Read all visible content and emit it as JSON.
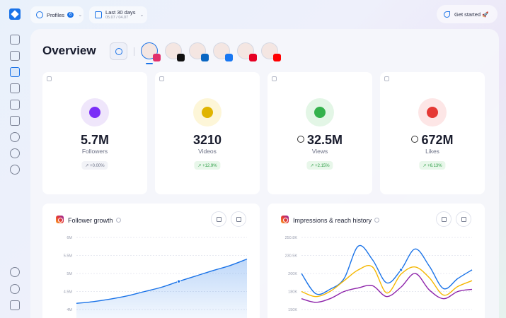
{
  "topbar": {
    "profiles_label": "Profiles",
    "profiles_count": "6",
    "date_range_label": "Last 30 days",
    "date_range_sub": "05.07 / 04.07",
    "get_started_label": "Get started 🚀"
  },
  "sidebar": {
    "items": [
      "home-icon",
      "grid-icon",
      "analytics-icon",
      "clipboard-icon",
      "image-icon",
      "calendar-icon",
      "bulb-icon",
      "chat-icon",
      "globe-icon",
      "bell-icon",
      "user-icon",
      "settings-icon"
    ],
    "active": "analytics-icon"
  },
  "main": {
    "title": "Overview",
    "profiles": [
      {
        "network": "instagram",
        "color": "#e1306c"
      },
      {
        "network": "tiktok",
        "color": "#111111"
      },
      {
        "network": "linkedin",
        "color": "#0a66c2"
      },
      {
        "network": "facebook",
        "color": "#1877f2"
      },
      {
        "network": "pinterest",
        "color": "#e60023"
      },
      {
        "network": "youtube",
        "color": "#ff0000"
      }
    ]
  },
  "stats": [
    {
      "value": "5.7M",
      "label": "Followers",
      "change": "↗ +0.00%",
      "icon": "eye-icon",
      "icon_bg": "#efe6fb",
      "icon_fg": "#7b2ff7",
      "change_bg": "#f2f3f7",
      "change_color": "#6c7186",
      "linked": false
    },
    {
      "value": "3210",
      "label": "Videos",
      "change": "↗ +12.9%",
      "icon": "target-icon",
      "icon_bg": "#fdf6d8",
      "icon_fg": "#e0b400",
      "change_bg": "#e8f7ea",
      "change_color": "#2e9e47",
      "linked": false
    },
    {
      "value": "32.5M",
      "label": "Views",
      "change": "↗ +2.15%",
      "icon": "smile-icon",
      "icon_bg": "#e3f6e6",
      "icon_fg": "#34b24c",
      "change_bg": "#e8f7ea",
      "change_color": "#2e9e47",
      "linked": true
    },
    {
      "value": "672M",
      "label": "Likes",
      "change": "↗ +6.13%",
      "icon": "heart-icon",
      "icon_bg": "#fde6e6",
      "icon_fg": "#e53935",
      "change_bg": "#e8f7ea",
      "change_color": "#2e9e47",
      "linked": true
    }
  ],
  "charts": {
    "follower_title": "Follower growth",
    "impressions_title": "Impressions & reach history"
  },
  "chart_data": [
    {
      "type": "area",
      "title": "Follower growth",
      "x": [
        0,
        1,
        2,
        3,
        4,
        5,
        6,
        7,
        8,
        9,
        10
      ],
      "series": [
        {
          "values": [
            4.17,
            4.22,
            4.29,
            4.38,
            4.5,
            4.62,
            4.78,
            4.93,
            5.08,
            5.22,
            5.4
          ]
        }
      ],
      "yticks": [
        "6M",
        "5.5M",
        "5M",
        "4.5M",
        "4M"
      ],
      "ylim": [
        4,
        6
      ],
      "color": "#1a73e8"
    },
    {
      "type": "line",
      "title": "Impressions & reach history",
      "x": [
        0,
        1,
        2,
        3,
        4,
        5,
        6,
        7,
        8,
        9,
        10,
        11,
        12
      ],
      "series": [
        {
          "values": [
            200,
            172,
            178,
            193,
            238,
            219,
            187,
            205,
            234,
            210,
            179,
            193,
            205
          ],
          "color": "#1a73e8"
        },
        {
          "values": [
            175,
            168,
            175,
            190,
            205,
            209,
            173,
            199,
            209,
            194,
            170,
            182,
            190
          ],
          "color": "#f5b700"
        },
        {
          "values": [
            165,
            160,
            165,
            175,
            180,
            183,
            168,
            181,
            200,
            177,
            165,
            175,
            178
          ],
          "color": "#8e24aa"
        }
      ],
      "yticks": [
        "250.8K",
        "230.5K",
        "200K",
        "180K",
        "150K"
      ],
      "ylim": [
        150,
        250
      ]
    }
  ]
}
